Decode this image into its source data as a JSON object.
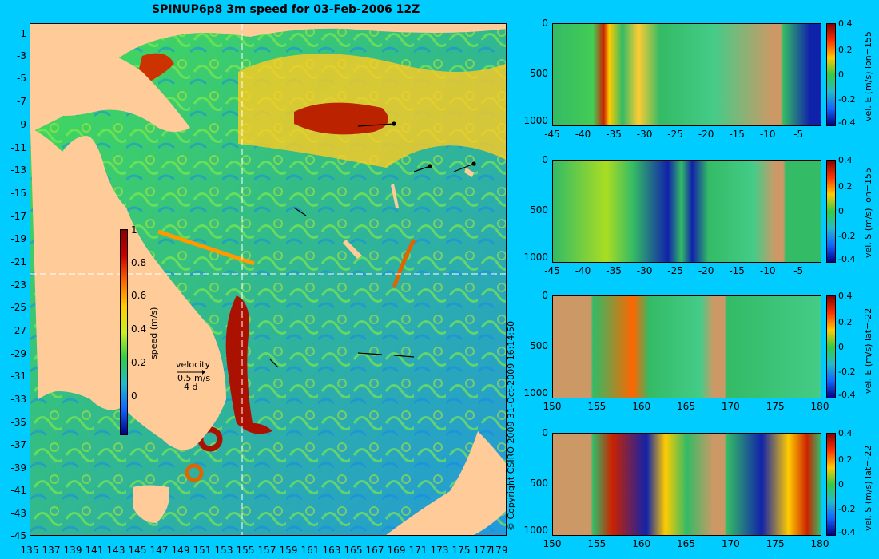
{
  "map": {
    "title": "SPINUP6p8 3m speed for 03-Feb-2006 12Z",
    "lat_ticks": [
      "-1",
      "-3",
      "-5",
      "-7",
      "-9",
      "-11",
      "-13",
      "-15",
      "-17",
      "-19",
      "-21",
      "-23",
      "-25",
      "-27",
      "-29",
      "-31",
      "-33",
      "-35",
      "-37",
      "-39",
      "-41",
      "-43",
      "-45"
    ],
    "lon_ticks": [
      "135",
      "137",
      "139",
      "141",
      "143",
      "145",
      "147",
      "149",
      "151",
      "153",
      "155",
      "157",
      "159",
      "161",
      "163",
      "165",
      "167",
      "169",
      "171",
      "173",
      "175",
      "177",
      "179"
    ],
    "colorbar_ticks": [
      "1",
      "0.8",
      "0.6",
      "0.4",
      "0.2",
      "0"
    ],
    "colorbar_label": "speed (m/s)",
    "velocity_legend": {
      "title": "velocity",
      "value": "0.5 m/s",
      "duration": "4 d"
    },
    "copyright": "© Copyright CSIRO 2009   31-Oct-2009 16:14:50",
    "colors": {
      "background": "#00ccff",
      "land": "#ffcc99",
      "crosshair": "#ffffff"
    }
  },
  "sections": [
    {
      "label": "vel. E (m/s) lon=155",
      "depth_ticks": [
        "0",
        "500",
        "1000"
      ],
      "x_ticks": [
        "-45",
        "-40",
        "-35",
        "-30",
        "-25",
        "-20",
        "-15",
        "-10",
        "-5"
      ],
      "cbar_ticks": [
        "0.4",
        "0.2",
        "0",
        "-0.2",
        "-0.4"
      ]
    },
    {
      "label": "vel. S (m/s) lon=155",
      "depth_ticks": [
        "0",
        "500",
        "1000"
      ],
      "x_ticks": [
        "-45",
        "-40",
        "-35",
        "-30",
        "-25",
        "-20",
        "-15",
        "-10",
        "-5"
      ],
      "cbar_ticks": [
        "0.4",
        "0.2",
        "0",
        "-0.2",
        "-0.4"
      ]
    },
    {
      "label": "vel. E (m/s) lat=-22",
      "depth_ticks": [
        "0",
        "500",
        "1000"
      ],
      "x_ticks": [
        "150",
        "155",
        "160",
        "165",
        "170",
        "175",
        "180"
      ],
      "cbar_ticks": [
        "0.4",
        "0.2",
        "0",
        "-0.2",
        "-0.4"
      ]
    },
    {
      "label": "vel. S (m/s) lat=-22",
      "depth_ticks": [
        "0",
        "500",
        "1000"
      ],
      "x_ticks": [
        "150",
        "155",
        "160",
        "165",
        "170",
        "175",
        "180"
      ],
      "cbar_ticks": [
        "0.4",
        "0.2",
        "0",
        "-0.2",
        "-0.4"
      ]
    }
  ]
}
